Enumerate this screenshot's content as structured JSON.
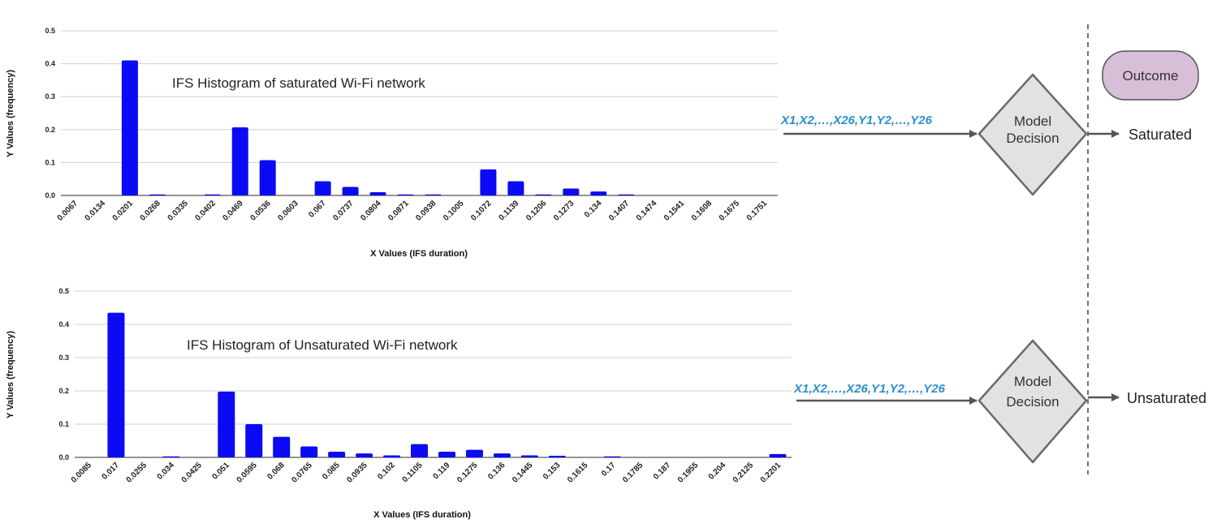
{
  "chart_data": [
    {
      "type": "bar",
      "title": "IFS Histogram of saturated Wi-Fi network",
      "xlabel": "X Values (IFS duration)",
      "ylabel": "Y Values (frequency)",
      "ylim": [
        0,
        0.5
      ],
      "yticks": [
        "0.0",
        "0.1",
        "0.2",
        "0.3",
        "0.4",
        "0.5"
      ],
      "grid": true,
      "bar_color": "#0a0af5",
      "categories": [
        "0.0067",
        "0.0134",
        "0.0201",
        "0.0268",
        "0.0335",
        "0.0402",
        "0.0469",
        "0.0536",
        "0.0603",
        "0.067",
        "0.0737",
        "0.0804",
        "0.0871",
        "0.0938",
        "0.1005",
        "0.1072",
        "0.1139",
        "0.1206",
        "0.1273",
        "0.134",
        "0.1407",
        "0.1474",
        "0.1541",
        "0.1608",
        "0.1675",
        "0.1751"
      ],
      "values": [
        0,
        0,
        0.41,
        0.001,
        0,
        0.003,
        0.207,
        0.107,
        0,
        0.043,
        0.026,
        0.01,
        0.003,
        0.003,
        0,
        0.079,
        0.043,
        0.001,
        0.021,
        0.012,
        0.003,
        0,
        0,
        0,
        0,
        0
      ]
    },
    {
      "type": "bar",
      "title": "IFS Histogram of Unsaturated Wi-Fi network",
      "xlabel": "X Values (IFS duration)",
      "ylabel": "Y Values (frequency)",
      "ylim": [
        0,
        0.5
      ],
      "yticks": [
        "0.0",
        "0.1",
        "0.2",
        "0.3",
        "0.4",
        "0.5"
      ],
      "grid": true,
      "bar_color": "#0a0af5",
      "categories": [
        "0.0085",
        "0.017",
        "0.0255",
        "0.034",
        "0.0425",
        "0.051",
        "0.0595",
        "0.068",
        "0.0765",
        "0.085",
        "0.0935",
        "0.102",
        "0.1105",
        "0.119",
        "0.1275",
        "0.136",
        "0.1445",
        "0.153",
        "0.1615",
        "0.17",
        "0.1785",
        "0.187",
        "0.1955",
        "0.204",
        "0.2125",
        "0.2201"
      ],
      "values": [
        0,
        0.435,
        0,
        0.001,
        0,
        0.198,
        0.1,
        0.062,
        0.033,
        0.017,
        0.012,
        0.006,
        0.04,
        0.017,
        0.023,
        0.012,
        0.006,
        0.005,
        0,
        0.001,
        0,
        0,
        0,
        0,
        0,
        0.01
      ]
    }
  ],
  "diagram": {
    "feature_label": "X1,X2,…,X26,Y1,Y2,…,Y26",
    "model_line1": "Model",
    "model_line2": "Decision",
    "outcome_header": "Outcome",
    "outcome_top": "Saturated",
    "outcome_bottom": "Unsaturated",
    "colors": {
      "feature_text": "#2a8fd0",
      "diamond_fill": "#e2e2e2",
      "diamond_stroke": "#6a6a6a",
      "outcome_fill": "#d8bfd8",
      "arrow": "#555555"
    }
  }
}
